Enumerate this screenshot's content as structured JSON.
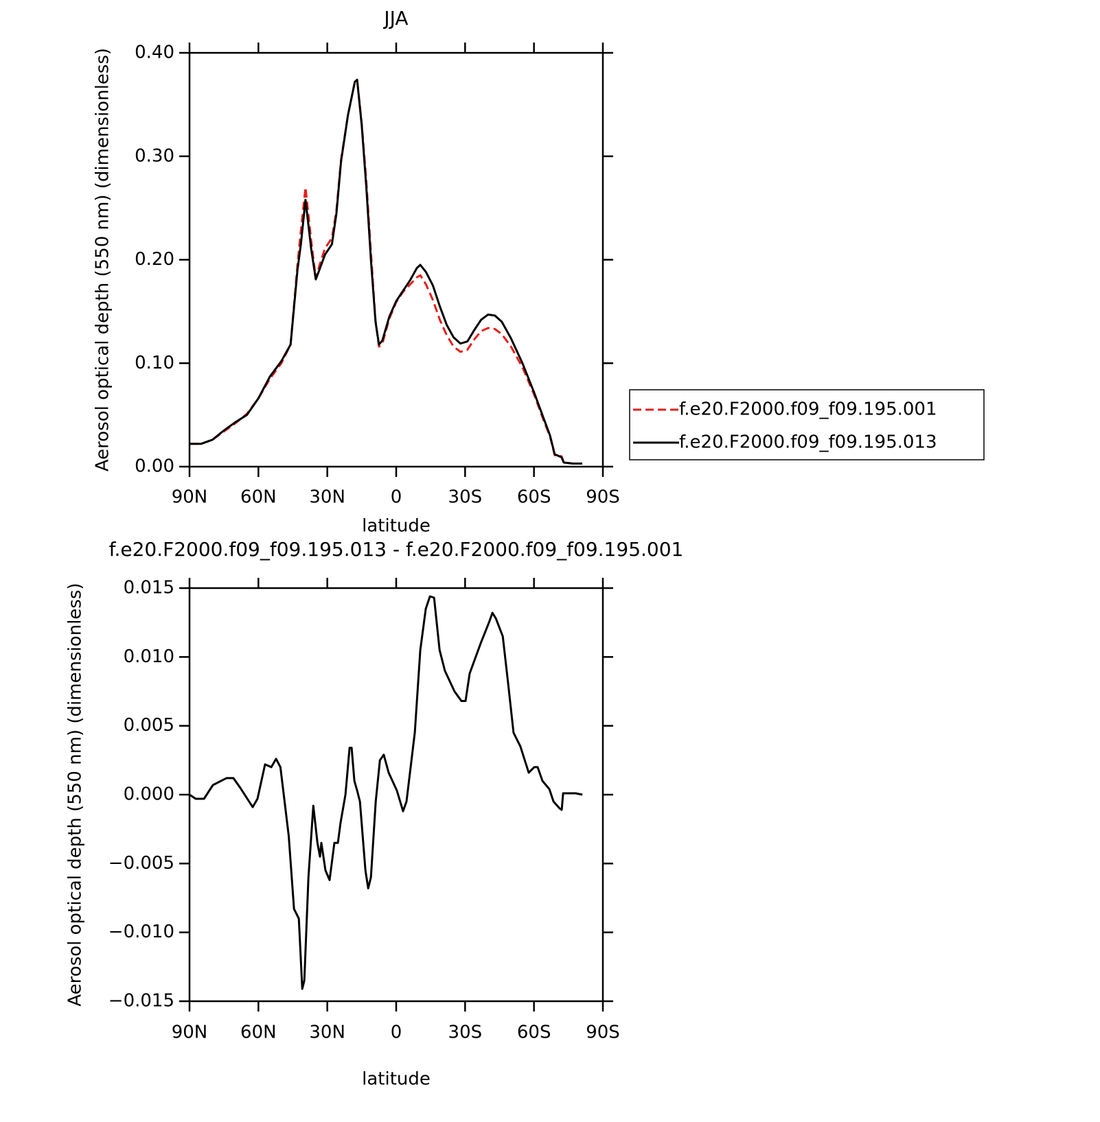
{
  "chart_data": [
    {
      "type": "line",
      "title": "JJA",
      "x_label": "latitude",
      "y_label": "Aerosol optical depth (550 nm) (dimensionless)",
      "xlim": [
        90,
        -90
      ],
      "xticks": [
        {
          "value": 90,
          "label": "90N"
        },
        {
          "value": 60,
          "label": "60N"
        },
        {
          "value": 30,
          "label": "30N"
        },
        0,
        {
          "value": -30,
          "label": "30S"
        },
        {
          "value": -60,
          "label": "60S"
        },
        {
          "value": -90,
          "label": "90S"
        }
      ],
      "ylim": [
        0,
        0.4
      ],
      "yticks": [
        {
          "value": 0,
          "label": "0.00"
        },
        {
          "value": 0.1,
          "label": "0.10"
        },
        {
          "value": 0.2,
          "label": "0.20"
        },
        {
          "value": 0.3,
          "label": "0.30"
        },
        {
          "value": 0.4,
          "label": "0.40"
        }
      ],
      "legend": "right",
      "x": [
        90,
        85,
        80,
        75,
        70,
        65,
        60,
        55,
        50,
        46,
        43,
        41.5,
        39.5,
        37,
        35,
        33.5,
        31,
        28,
        26,
        24,
        21,
        18,
        17,
        15,
        13,
        11,
        9,
        7.5,
        6,
        3,
        0,
        -3,
        -6,
        -9,
        -10.5,
        -13,
        -16,
        -19,
        -22,
        -25,
        -28,
        -31,
        -34,
        -37,
        -40,
        -43,
        -46,
        -50,
        -55,
        -60,
        -64,
        -67,
        -69,
        -72,
        -73,
        -77,
        -81
      ],
      "series": [
        {
          "name": "f.e20.F2000.f09_f09.195.001",
          "color": "#e8201c",
          "linestyle": "dashed",
          "values": [
            0.022,
            0.022,
            0.026,
            0.034,
            0.042,
            0.051,
            0.066,
            0.085,
            0.1,
            0.118,
            0.195,
            0.228,
            0.27,
            0.218,
            0.182,
            0.194,
            0.211,
            0.221,
            0.248,
            0.297,
            0.34,
            0.372,
            0.374,
            0.332,
            0.276,
            0.207,
            0.141,
            0.116,
            0.119,
            0.143,
            0.159,
            0.169,
            0.176,
            0.183,
            0.185,
            0.176,
            0.161,
            0.142,
            0.127,
            0.116,
            0.111,
            0.113,
            0.123,
            0.131,
            0.134,
            0.133,
            0.128,
            0.116,
            0.096,
            0.07,
            0.046,
            0.029,
            0.011,
            0.01,
            0.004,
            0.003,
            0.003
          ]
        },
        {
          "name": "f.e20.F2000.f09_f09.195.013",
          "color": "#000000",
          "linestyle": "solid",
          "values": [
            0.022,
            0.022,
            0.026,
            0.035,
            0.043,
            0.05,
            0.066,
            0.087,
            0.102,
            0.118,
            0.19,
            0.215,
            0.258,
            0.21,
            0.181,
            0.19,
            0.205,
            0.215,
            0.245,
            0.295,
            0.34,
            0.372,
            0.374,
            0.33,
            0.27,
            0.2,
            0.14,
            0.118,
            0.122,
            0.145,
            0.16,
            0.17,
            0.18,
            0.192,
            0.195,
            0.188,
            0.175,
            0.155,
            0.137,
            0.125,
            0.119,
            0.121,
            0.132,
            0.142,
            0.147,
            0.146,
            0.14,
            0.124,
            0.1,
            0.072,
            0.048,
            0.03,
            0.012,
            0.009,
            0.004,
            0.003,
            0.003
          ]
        }
      ]
    },
    {
      "type": "line",
      "title": "f.e20.F2000.f09_f09.195.013 - f.e20.F2000.f09_f09.195.001",
      "x_label": "latitude",
      "y_label": "Aerosol optical depth (550 nm) (dimensionless)",
      "xlim": [
        90,
        -90
      ],
      "xticks": [
        {
          "value": 90,
          "label": "90N"
        },
        {
          "value": 60,
          "label": "60N"
        },
        {
          "value": 30,
          "label": "30N"
        },
        0,
        {
          "value": -30,
          "label": "30S"
        },
        {
          "value": -60,
          "label": "60S"
        },
        {
          "value": -90,
          "label": "90S"
        }
      ],
      "ylim": [
        -0.015,
        0.015
      ],
      "yticks": [
        {
          "value": -0.015,
          "label": "−0.015"
        },
        {
          "value": -0.01,
          "label": "−0.010"
        },
        {
          "value": -0.005,
          "label": "−0.005"
        },
        {
          "value": 0,
          "label": "0.000"
        },
        0.005,
        {
          "value": 0.01,
          "label": "0.010"
        },
        0.015
      ],
      "x": [
        90,
        87.3,
        83.7,
        79.8,
        73.9,
        70.9,
        67.9,
        62.5,
        60.4,
        57.1,
        54.4,
        52.3,
        50.4,
        46.8,
        44.5,
        42.4,
        40.9,
        40.0,
        38.2,
        36.1,
        34.3,
        33.2,
        32.6,
        30.8,
        29.0,
        26.9,
        25.4,
        24.2,
        22.1,
        20.3,
        19.4,
        18.2,
        17.0,
        15.8,
        13.4,
        12.2,
        11.0,
        8.9,
        7.1,
        5.4,
        3.3,
        -0.3,
        -3.0,
        -4.5,
        -8.1,
        -10.5,
        -12.9,
        -14.7,
        -16.5,
        -18.9,
        -21.2,
        -25.4,
        -28.4,
        -30.2,
        -32.0,
        -36.8,
        -40.4,
        -41.9,
        -43.4,
        -46.4,
        -48.8,
        -51.1,
        -54.1,
        -57.7,
        -60.1,
        -61.6,
        -63.7,
        -66.7,
        -68.5,
        -71.2,
        -72.1,
        -72.7,
        -76.3,
        -78.1,
        -81.1
      ],
      "series": [
        {
          "color": "#000000",
          "linestyle": "solid",
          "values": [
            0,
            -0.0003,
            -0.0003,
            0.0007,
            0.0012,
            0.0012,
            0.0005,
            -0.0009,
            -0.0003,
            0.0022,
            0.002,
            0.0026,
            0.002,
            -0.003,
            -0.0083,
            -0.009,
            -0.0141,
            -0.0135,
            -0.006,
            -0.0008,
            -0.0035,
            -0.0045,
            -0.0035,
            -0.0055,
            -0.0062,
            -0.0035,
            -0.0035,
            -0.002,
            0,
            0.0034,
            0.0034,
            0.001,
            0.0003,
            -0.0005,
            -0.0055,
            -0.0068,
            -0.006,
            -0.0005,
            0.0025,
            0.0029,
            0.0016,
            0.0003,
            -0.0012,
            -0.0005,
            0.0045,
            0.0105,
            0.0135,
            0.0144,
            0.0143,
            0.0105,
            0.009,
            0.0075,
            0.0068,
            0.0068,
            0.0088,
            0.011,
            0.0125,
            0.0132,
            0.0128,
            0.0115,
            0.008,
            0.0045,
            0.0035,
            0.0016,
            0.002,
            0.002,
            0.001,
            0.0004,
            -0.0005,
            -0.001,
            -0.0011,
            0.0001,
            0.0001,
            0.0001,
            0
          ]
        }
      ]
    }
  ]
}
